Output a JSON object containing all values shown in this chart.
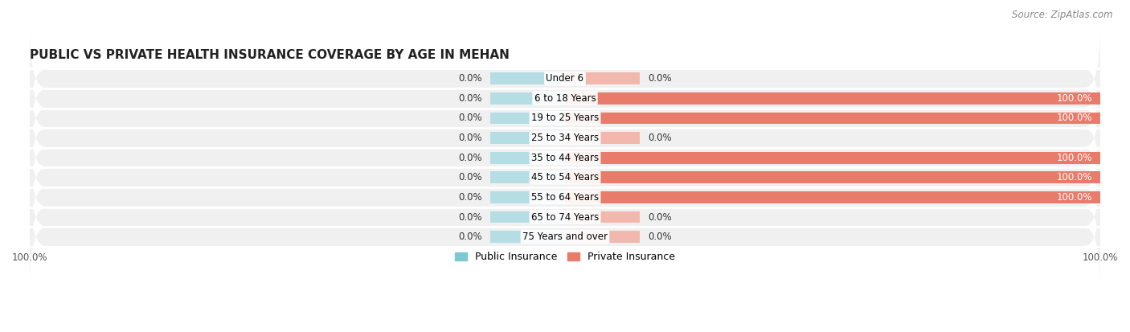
{
  "title": "PUBLIC VS PRIVATE HEALTH INSURANCE COVERAGE BY AGE IN MEHAN",
  "source": "Source: ZipAtlas.com",
  "categories": [
    "Under 6",
    "6 to 18 Years",
    "19 to 25 Years",
    "25 to 34 Years",
    "35 to 44 Years",
    "45 to 54 Years",
    "55 to 64 Years",
    "65 to 74 Years",
    "75 Years and over"
  ],
  "public_values": [
    0.0,
    0.0,
    0.0,
    0.0,
    0.0,
    0.0,
    0.0,
    0.0,
    0.0
  ],
  "private_values": [
    0.0,
    100.0,
    100.0,
    0.0,
    100.0,
    100.0,
    100.0,
    0.0,
    0.0
  ],
  "public_color": "#7ec8d2",
  "private_color": "#e87b6a",
  "public_color_light": "#b5dde4",
  "private_color_light": "#f2b8ae",
  "bg_row": "#f0f0f0",
  "bg_figure": "#ffffff",
  "title_fontsize": 11,
  "source_fontsize": 8.5,
  "label_fontsize": 8.5,
  "value_fontsize": 8.5,
  "tick_fontsize": 8.5,
  "legend_fontsize": 9,
  "xlim_left": -100,
  "xlim_right": 100,
  "bar_placeholder": 14,
  "legend_labels": [
    "Public Insurance",
    "Private Insurance"
  ]
}
